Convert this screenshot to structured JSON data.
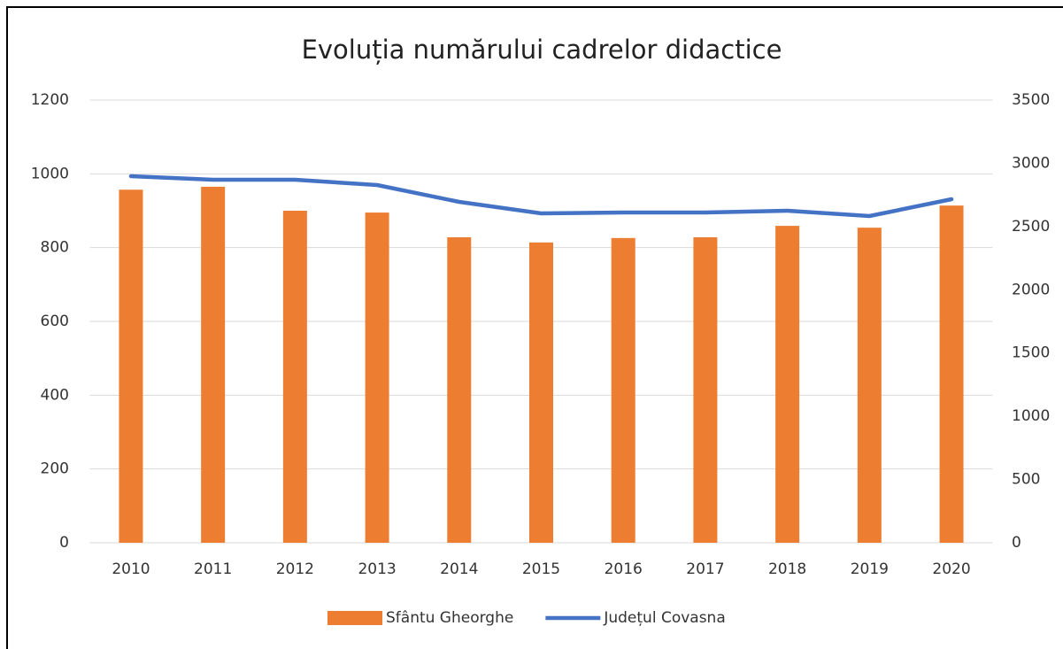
{
  "chart_data": {
    "type": "bar_line",
    "title": "Evoluția numărului cadrelor didactice",
    "categories": [
      "2010",
      "2011",
      "2012",
      "2013",
      "2014",
      "2015",
      "2016",
      "2017",
      "2018",
      "2019",
      "2020"
    ],
    "series": [
      {
        "name": "Sfântu Gheorghe",
        "color": "#ed7d31",
        "type": "bar",
        "values": [
          957,
          965,
          900,
          895,
          828,
          814,
          826,
          828,
          859,
          854,
          914
        ]
      },
      {
        "name": "Județul Covasna",
        "color": "#4472c4",
        "type": "line",
        "axis": "y2",
        "values": [
          2898,
          2870,
          2870,
          2828,
          2695,
          2604,
          2611,
          2611,
          2625,
          2583,
          2716
        ]
      }
    ],
    "ylim": [
      0,
      1200
    ],
    "yticks": [
      0,
      200,
      400,
      600,
      800,
      1000,
      1200
    ],
    "y2lim": [
      0,
      3500
    ],
    "y2ticks": [
      0,
      500,
      1000,
      1500,
      2000,
      2500,
      3000,
      3500
    ],
    "grid": true,
    "legend": "bottom"
  }
}
